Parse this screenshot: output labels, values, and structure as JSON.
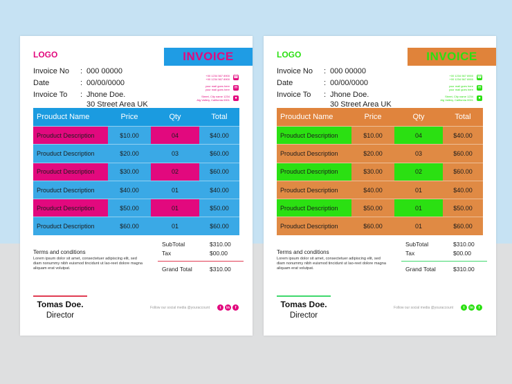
{
  "invoices": [
    {
      "theme": {
        "accent": "#e2097e",
        "banner_bg": "#1f9ce4",
        "banner_text": "#e2097e",
        "header_bg": "#1b9be0",
        "row_bg": "#3aa9e6",
        "highlight": "#e2097e",
        "line": "#e03b52"
      },
      "logo": "LOGO",
      "title": "INVOICE",
      "invoice_no_label": "Invoice No",
      "invoice_no": "000 00000",
      "date_label": "Date",
      "date": "00/00/0000",
      "to_label": "Invoice To",
      "to_name": "Jhone Doe.",
      "to_address": "30 Street Area UK",
      "colon": ":",
      "contact": {
        "phone": [
          "+00 1234 567 8900",
          "+00 1234 567 8900"
        ],
        "email": [
          "your mail goes here",
          "your mail goes here"
        ],
        "address": [
          "Street, City name 1234",
          "Alg Vallery, California 0001"
        ]
      },
      "columns": [
        "Prouduct Name",
        "Price",
        "Qty",
        "Total"
      ],
      "rows": [
        {
          "desc": "Prouduct Description",
          "price": "$10.00",
          "qty": "04",
          "total": "$40.00"
        },
        {
          "desc": "Prouduct Description",
          "price": "$20.00",
          "qty": "03",
          "total": "$60.00"
        },
        {
          "desc": "Prouduct Description",
          "price": "$30.00",
          "qty": "02",
          "total": "$60.00"
        },
        {
          "desc": "Prouduct Description",
          "price": "$40.00",
          "qty": "01",
          "total": "$40.00"
        },
        {
          "desc": "Prouduct Description",
          "price": "$50.00",
          "qty": "01",
          "total": "$50.00"
        },
        {
          "desc": "Prouduct Description",
          "price": "$60.00",
          "qty": "01",
          "total": "$60.00"
        }
      ],
      "terms_title": "Terms and conditions",
      "terms_body": "Lorem ipsum dolor sit amet, consectetuer adipiscing elit, sed diam nonummy nibh euismod tincidunt ut lao-reet dolore magna aliquam erat volutpat.",
      "subtotal_label": "SubTotal",
      "subtotal": "$310.00",
      "tax_label": "Tax",
      "tax": "$00.00",
      "grand_total_label": "Grand Total",
      "grand_total": "$310.00",
      "signer_name": "Tomas Doe.",
      "signer_title": "Director",
      "follow_text": "Follow our social media @youraccount",
      "social": [
        "twitter",
        "linkedin",
        "facebook"
      ],
      "social_glyphs": [
        "t",
        "in",
        "f"
      ]
    },
    {
      "theme": {
        "accent": "#2be012",
        "banner_bg": "#e0833a",
        "banner_text": "#2be012",
        "header_bg": "#e0843d",
        "row_bg": "#e08a44",
        "highlight": "#2be012",
        "line": "#3ed86c"
      },
      "logo": "LOGO",
      "title": "INVOICE",
      "invoice_no_label": "Invoice No",
      "invoice_no": "000 00000",
      "date_label": "Date",
      "date": "00/00/0000",
      "to_label": "Invoice To",
      "to_name": "Jhone Doe.",
      "to_address": "30 Street Area UK",
      "colon": ":",
      "contact": {
        "phone": [
          "+00 1234 567 8900",
          "+00 1234 567 8900"
        ],
        "email": [
          "your mail goes here",
          "your mail goes here"
        ],
        "address": [
          "Street, City name 1234",
          "Alg Vallery, California 0001"
        ]
      },
      "columns": [
        "Prouduct Name",
        "Price",
        "Qty",
        "Total"
      ],
      "rows": [
        {
          "desc": "Prouduct Description",
          "price": "$10.00",
          "qty": "04",
          "total": "$40.00"
        },
        {
          "desc": "Prouduct Description",
          "price": "$20.00",
          "qty": "03",
          "total": "$60.00"
        },
        {
          "desc": "Prouduct Description",
          "price": "$30.00",
          "qty": "02",
          "total": "$60.00"
        },
        {
          "desc": "Prouduct Description",
          "price": "$40.00",
          "qty": "01",
          "total": "$40.00"
        },
        {
          "desc": "Prouduct Description",
          "price": "$50.00",
          "qty": "01",
          "total": "$50.00"
        },
        {
          "desc": "Prouduct Description",
          "price": "$60.00",
          "qty": "01",
          "total": "$60.00"
        }
      ],
      "terms_title": "Terms and conditions",
      "terms_body": "Lorem ipsum dolor sit amet, consectetuer adipiscing elit, sed diam nonummy nibh euismod tincidunt ut lao-reet dolore magna aliquam erat volutpat.",
      "subtotal_label": "SubTotal",
      "subtotal": "$310.00",
      "tax_label": "Tax",
      "tax": "$00.00",
      "grand_total_label": "Grand Total",
      "grand_total": "$310.00",
      "signer_name": "Tomas Doe.",
      "signer_title": "Director",
      "follow_text": "Follow our social media @youraccount",
      "social": [
        "twitter",
        "linkedin",
        "facebook"
      ],
      "social_glyphs": [
        "t",
        "in",
        "f"
      ]
    }
  ]
}
